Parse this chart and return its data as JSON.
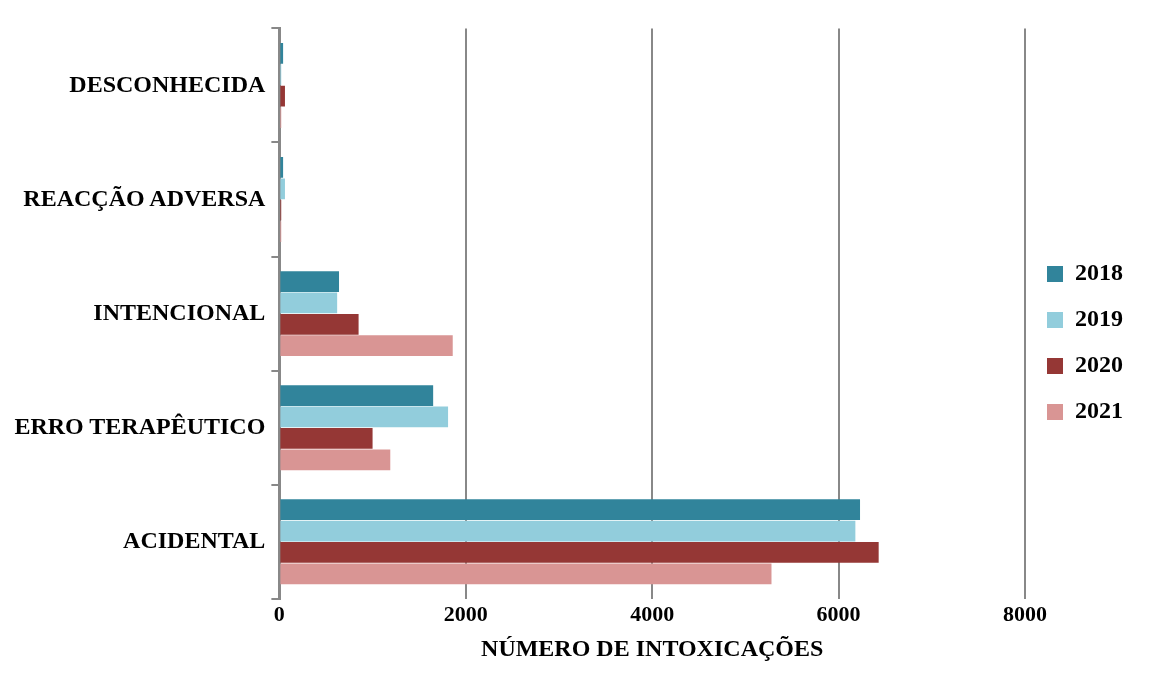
{
  "chart_data": {
    "type": "bar",
    "orientation": "horizontal",
    "xlabel": "NÚMERO DE INTOXICAÇÕES",
    "categories": [
      "DESCONHECIDA",
      "REACÇÃO ADVERSA",
      "INTENCIONAL",
      "ERRO TERAPÊUTICO",
      "ACIDENTAL"
    ],
    "series": [
      {
        "name": "2018",
        "color": "#31849b",
        "values": [
          40,
          40,
          640,
          1650,
          6230
        ]
      },
      {
        "name": "2019",
        "color": "#92cddc",
        "values": [
          20,
          60,
          620,
          1810,
          6180
        ]
      },
      {
        "name": "2020",
        "color": "#953735",
        "values": [
          60,
          20,
          850,
          1000,
          6430
        ]
      },
      {
        "name": "2021",
        "color": "#d99594",
        "values": [
          20,
          20,
          1860,
          1190,
          5280
        ]
      }
    ],
    "xlim": [
      0,
      8000
    ],
    "xticks": [
      0,
      2000,
      4000,
      6000,
      8000
    ],
    "grid": "x",
    "legend": "right"
  }
}
